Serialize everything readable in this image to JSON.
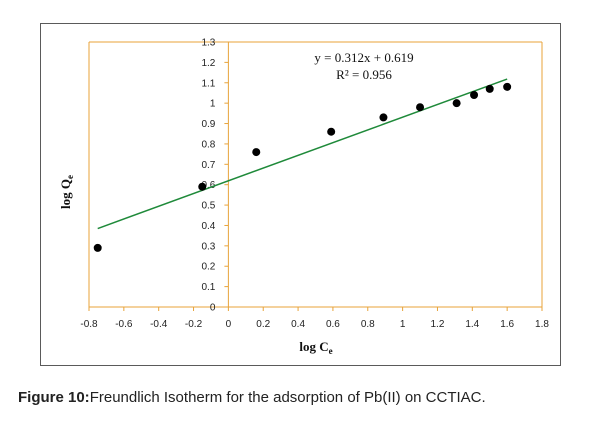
{
  "caption": {
    "label": "Figure 10:",
    "text": "Freundlich Isotherm for the adsorption of Pb(II) on CCTIAC."
  },
  "colors": {
    "axis": "#e8a33a",
    "trendline": "#1f8a3a",
    "points": "#000000",
    "frame": "#5a5a5a"
  },
  "chart_data": {
    "type": "scatter",
    "xlabel": "log C",
    "xlabel_sub": "e",
    "ylabel": "log Q",
    "ylabel_sub": "e",
    "xlim": [
      -0.8,
      1.8
    ],
    "ylim": [
      0,
      1.3
    ],
    "x_ticks": [
      "-0.8",
      "-0.6",
      "-0.4",
      "-0.2",
      "0",
      "0.2",
      "0.4",
      "0.6",
      "0.8",
      "1",
      "1.2",
      "1.4",
      "1.6",
      "1.8"
    ],
    "y_ticks": [
      "0",
      "0.1",
      "0.2",
      "0.3",
      "0.4",
      "0.5",
      "0.6",
      "0.7",
      "0.8",
      "0.9",
      "1",
      "1.1",
      "1.2",
      "1.3"
    ],
    "points": [
      {
        "x": -0.75,
        "y": 0.29
      },
      {
        "x": -0.15,
        "y": 0.59
      },
      {
        "x": 0.16,
        "y": 0.76
      },
      {
        "x": 0.59,
        "y": 0.86
      },
      {
        "x": 0.89,
        "y": 0.93
      },
      {
        "x": 1.1,
        "y": 0.98
      },
      {
        "x": 1.31,
        "y": 1.0
      },
      {
        "x": 1.41,
        "y": 1.04
      },
      {
        "x": 1.5,
        "y": 1.07
      },
      {
        "x": 1.6,
        "y": 1.08
      }
    ],
    "trendline": {
      "slope": 0.312,
      "intercept": 0.619,
      "x_range": [
        -0.75,
        1.6
      ]
    },
    "annotations": {
      "equation": "y = 0.312x + 0.619",
      "r2": "R² = 0.956"
    },
    "grid": false,
    "legend": "none"
  }
}
